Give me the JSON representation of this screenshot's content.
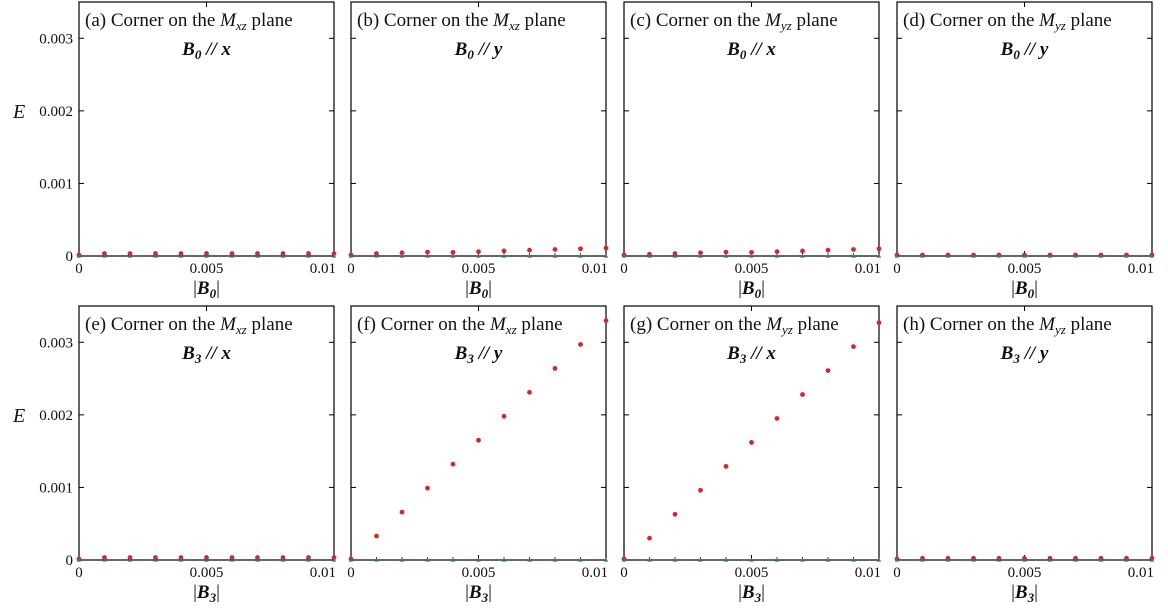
{
  "chart_data": [
    {
      "type": "scatter",
      "panel": "(a)",
      "title": "Corner on the M_xz plane",
      "title_prefix": "(a) Corner on the ",
      "title_var": "M",
      "title_sub": "xz",
      "title_suffix": " plane",
      "field_label": "B0 // x",
      "field_var": "B",
      "field_sub": "0",
      "field_dir": " // x",
      "xlabel": "|B0|",
      "ylabel": "E",
      "xlim": [
        0,
        0.01
      ],
      "ylim": [
        0,
        0.0035
      ],
      "xticks": [
        "0",
        "0.005",
        "0.01"
      ],
      "yticks": [
        "0",
        "0.001",
        "0.002",
        "0.003"
      ],
      "series": [
        {
          "color": "#d62728",
          "x": [
            0,
            0.001,
            0.002,
            0.003,
            0.004,
            0.005,
            0.006,
            0.007,
            0.008,
            0.009,
            0.01
          ],
          "y": [
            0,
            2e-05,
            2e-05,
            2e-05,
            2e-05,
            2e-05,
            2e-05,
            2e-05,
            2e-05,
            2e-05,
            2e-05
          ]
        },
        {
          "color": "#1f77b4",
          "x": [
            0,
            0.001,
            0.002,
            0.003,
            0.004,
            0.005,
            0.006,
            0.007,
            0.008,
            0.009,
            0.01
          ],
          "y": [
            0,
            0,
            0,
            0,
            0,
            0,
            0,
            0,
            0,
            0,
            0
          ]
        }
      ]
    },
    {
      "type": "scatter",
      "panel": "(b)",
      "title": "Corner on the M_xz plane",
      "title_prefix": "(b) Corner on the ",
      "title_var": "M",
      "title_sub": "xz",
      "title_suffix": " plane",
      "field_label": "B0 // y",
      "field_var": "B",
      "field_sub": "0",
      "field_dir": " // y",
      "xlabel": "|B0|",
      "ylabel": "",
      "xlim": [
        0,
        0.01
      ],
      "ylim": [
        0,
        0.0035
      ],
      "xticks": [
        "0",
        "0.005",
        "0.01"
      ],
      "yticks": [],
      "series": [
        {
          "color": "#d62728",
          "x": [
            0,
            0.001,
            0.002,
            0.003,
            0.004,
            0.005,
            0.006,
            0.007,
            0.008,
            0.009,
            0.01
          ],
          "y": [
            0,
            2e-05,
            3e-05,
            4e-05,
            5e-05,
            6e-05,
            7e-05,
            8e-05,
            9e-05,
            0.0001,
            0.00011
          ]
        },
        {
          "color": "#1f77b4",
          "x": [
            0,
            0.001,
            0.002,
            0.003,
            0.004,
            0.005,
            0.006,
            0.007,
            0.008,
            0.009,
            0.01
          ],
          "y": [
            0,
            0,
            0,
            0,
            0,
            0,
            0,
            0,
            0,
            0,
            0
          ]
        }
      ]
    },
    {
      "type": "scatter",
      "panel": "(c)",
      "title": "Corner on the M_yz plane",
      "title_prefix": "(c) Corner on the ",
      "title_var": "M",
      "title_sub": "yz",
      "title_suffix": " plane",
      "field_label": "B0 // x",
      "field_var": "B",
      "field_sub": "0",
      "field_dir": " // x",
      "xlabel": "|B0|",
      "ylabel": "",
      "xlim": [
        0,
        0.01
      ],
      "ylim": [
        0,
        0.0035
      ],
      "xticks": [
        "0",
        "0.005",
        "0.01"
      ],
      "yticks": [],
      "series": [
        {
          "color": "#d62728",
          "x": [
            0,
            0.001,
            0.002,
            0.003,
            0.004,
            0.005,
            0.006,
            0.007,
            0.008,
            0.009,
            0.01
          ],
          "y": [
            0,
            1e-05,
            2e-05,
            3e-05,
            4e-05,
            5e-05,
            6e-05,
            7e-05,
            8e-05,
            9e-05,
            0.0001
          ]
        },
        {
          "color": "#1f77b4",
          "x": [
            0,
            0.001,
            0.002,
            0.003,
            0.004,
            0.005,
            0.006,
            0.007,
            0.008,
            0.009,
            0.01
          ],
          "y": [
            0,
            0,
            0,
            0,
            0,
            0,
            0,
            0,
            0,
            0,
            0
          ]
        }
      ]
    },
    {
      "type": "scatter",
      "panel": "(d)",
      "title": "Corner on the M_yz plane",
      "title_prefix": "(d) Corner on the ",
      "title_var": "M",
      "title_sub": "yz",
      "title_suffix": " plane",
      "field_label": "B0 // y",
      "field_var": "B",
      "field_sub": "0",
      "field_dir": " // y",
      "xlabel": "|B0|",
      "ylabel": "",
      "xlim": [
        0,
        0.01
      ],
      "ylim": [
        0,
        0.0035
      ],
      "xticks": [
        "0",
        "0.005",
        "0.01"
      ],
      "yticks": [],
      "series": [
        {
          "color": "#d62728",
          "x": [
            0,
            0.001,
            0.002,
            0.003,
            0.004,
            0.005,
            0.006,
            0.007,
            0.008,
            0.009,
            0.01
          ],
          "y": [
            0,
            0,
            0,
            0,
            0,
            0,
            0,
            0,
            0,
            0,
            0
          ]
        },
        {
          "color": "#1f77b4",
          "x": [
            0,
            0.001,
            0.002,
            0.003,
            0.004,
            0.005,
            0.006,
            0.007,
            0.008,
            0.009,
            0.01
          ],
          "y": [
            0,
            0,
            0,
            0,
            0,
            0,
            0,
            0,
            0,
            0,
            0
          ]
        }
      ]
    },
    {
      "type": "scatter",
      "panel": "(e)",
      "title": "Corner on the M_xz plane",
      "title_prefix": "(e)  Corner on the ",
      "title_var": "M",
      "title_sub": "xz",
      "title_suffix": " plane",
      "field_label": "B3 // x",
      "field_var": "B",
      "field_sub": "3",
      "field_dir": " // x",
      "xlabel": "|B3|",
      "ylabel": "E",
      "xlim": [
        0,
        0.01
      ],
      "ylim": [
        0,
        0.0035
      ],
      "xticks": [
        "0",
        "0.005",
        "0.01"
      ],
      "yticks": [
        "0",
        "0.001",
        "0.002",
        "0.003"
      ],
      "series": [
        {
          "color": "#d62728",
          "x": [
            0,
            0.001,
            0.002,
            0.003,
            0.004,
            0.005,
            0.006,
            0.007,
            0.008,
            0.009,
            0.01
          ],
          "y": [
            0,
            2e-05,
            2e-05,
            2e-05,
            2e-05,
            2e-05,
            2e-05,
            2e-05,
            2e-05,
            2e-05,
            2e-05
          ]
        },
        {
          "color": "#1f77b4",
          "x": [
            0,
            0.001,
            0.002,
            0.003,
            0.004,
            0.005,
            0.006,
            0.007,
            0.008,
            0.009,
            0.01
          ],
          "y": [
            0,
            0,
            0,
            0,
            0,
            0,
            0,
            0,
            0,
            0,
            0
          ]
        }
      ]
    },
    {
      "type": "scatter",
      "panel": "(f)",
      "title": "Corner on the M_xz plane",
      "title_prefix": "(f) Corner on the ",
      "title_var": "M",
      "title_sub": "xz",
      "title_suffix": " plane",
      "field_label": "B3 // y",
      "field_var": "B",
      "field_sub": "3",
      "field_dir": " // y",
      "xlabel": "|B3|",
      "ylabel": "",
      "xlim": [
        0,
        0.01
      ],
      "ylim": [
        0,
        0.0035
      ],
      "xticks": [
        "0",
        "0.005",
        "0.01"
      ],
      "yticks": [],
      "series": [
        {
          "color": "#d62728",
          "x": [
            0,
            0.001,
            0.002,
            0.003,
            0.004,
            0.005,
            0.006,
            0.007,
            0.008,
            0.009,
            0.01
          ],
          "y": [
            0,
            0.00033,
            0.00066,
            0.00099,
            0.00132,
            0.00165,
            0.00198,
            0.00231,
            0.00264,
            0.00297,
            0.0033
          ]
        },
        {
          "color": "#1f77b4",
          "x": [
            0,
            0.001,
            0.002,
            0.003,
            0.004,
            0.005,
            0.006,
            0.007,
            0.008,
            0.009,
            0.01
          ],
          "y": [
            0,
            0,
            0,
            0,
            0,
            0,
            0,
            0,
            0,
            0,
            0
          ]
        }
      ]
    },
    {
      "type": "scatter",
      "panel": "(g)",
      "title": "Corner on the M_yz plane",
      "title_prefix": "(g) Corner on the ",
      "title_var": "M",
      "title_sub": "yz",
      "title_suffix": " plane",
      "field_label": "B3 // x",
      "field_var": "B",
      "field_sub": "3",
      "field_dir": " // x",
      "xlabel": "|B3|",
      "ylabel": "",
      "xlim": [
        0,
        0.01
      ],
      "ylim": [
        0,
        0.0035
      ],
      "xticks": [
        "0",
        "0.005",
        "0.01"
      ],
      "yticks": [],
      "series": [
        {
          "color": "#d62728",
          "x": [
            0,
            0.001,
            0.002,
            0.003,
            0.004,
            0.005,
            0.006,
            0.007,
            0.008,
            0.009,
            0.01
          ],
          "y": [
            0,
            0.0003,
            0.00063,
            0.00096,
            0.00129,
            0.00162,
            0.00195,
            0.00228,
            0.00261,
            0.00294,
            0.00327
          ]
        },
        {
          "color": "#1f77b4",
          "x": [
            0,
            0.001,
            0.002,
            0.003,
            0.004,
            0.005,
            0.006,
            0.007,
            0.008,
            0.009,
            0.01
          ],
          "y": [
            0,
            0,
            0,
            0,
            0,
            0,
            0,
            0,
            0,
            0,
            0
          ]
        }
      ]
    },
    {
      "type": "scatter",
      "panel": "(h)",
      "title": "Corner on the M_yz plane",
      "title_prefix": "(h) Corner on the ",
      "title_var": "M",
      "title_sub": "yz",
      "title_suffix": " plane",
      "field_label": "B3 // y",
      "field_var": "B",
      "field_sub": "3",
      "field_dir": " // y",
      "xlabel": "|B3|",
      "ylabel": "",
      "xlim": [
        0,
        0.01
      ],
      "ylim": [
        0,
        0.0035
      ],
      "xticks": [
        "0",
        "0.005",
        "0.01"
      ],
      "yticks": [],
      "series": [
        {
          "color": "#d62728",
          "x": [
            0,
            0.001,
            0.002,
            0.003,
            0.004,
            0.005,
            0.006,
            0.007,
            0.008,
            0.009,
            0.01
          ],
          "y": [
            0,
            1e-05,
            1e-05,
            1e-05,
            1e-05,
            1e-05,
            1e-05,
            1e-05,
            1e-05,
            1e-05,
            1e-05
          ]
        },
        {
          "color": "#1f77b4",
          "x": [
            0,
            0.001,
            0.002,
            0.003,
            0.004,
            0.005,
            0.006,
            0.007,
            0.008,
            0.009,
            0.01
          ],
          "y": [
            0,
            0,
            0,
            0,
            0,
            0,
            0,
            0,
            0,
            0,
            0
          ]
        }
      ]
    }
  ]
}
